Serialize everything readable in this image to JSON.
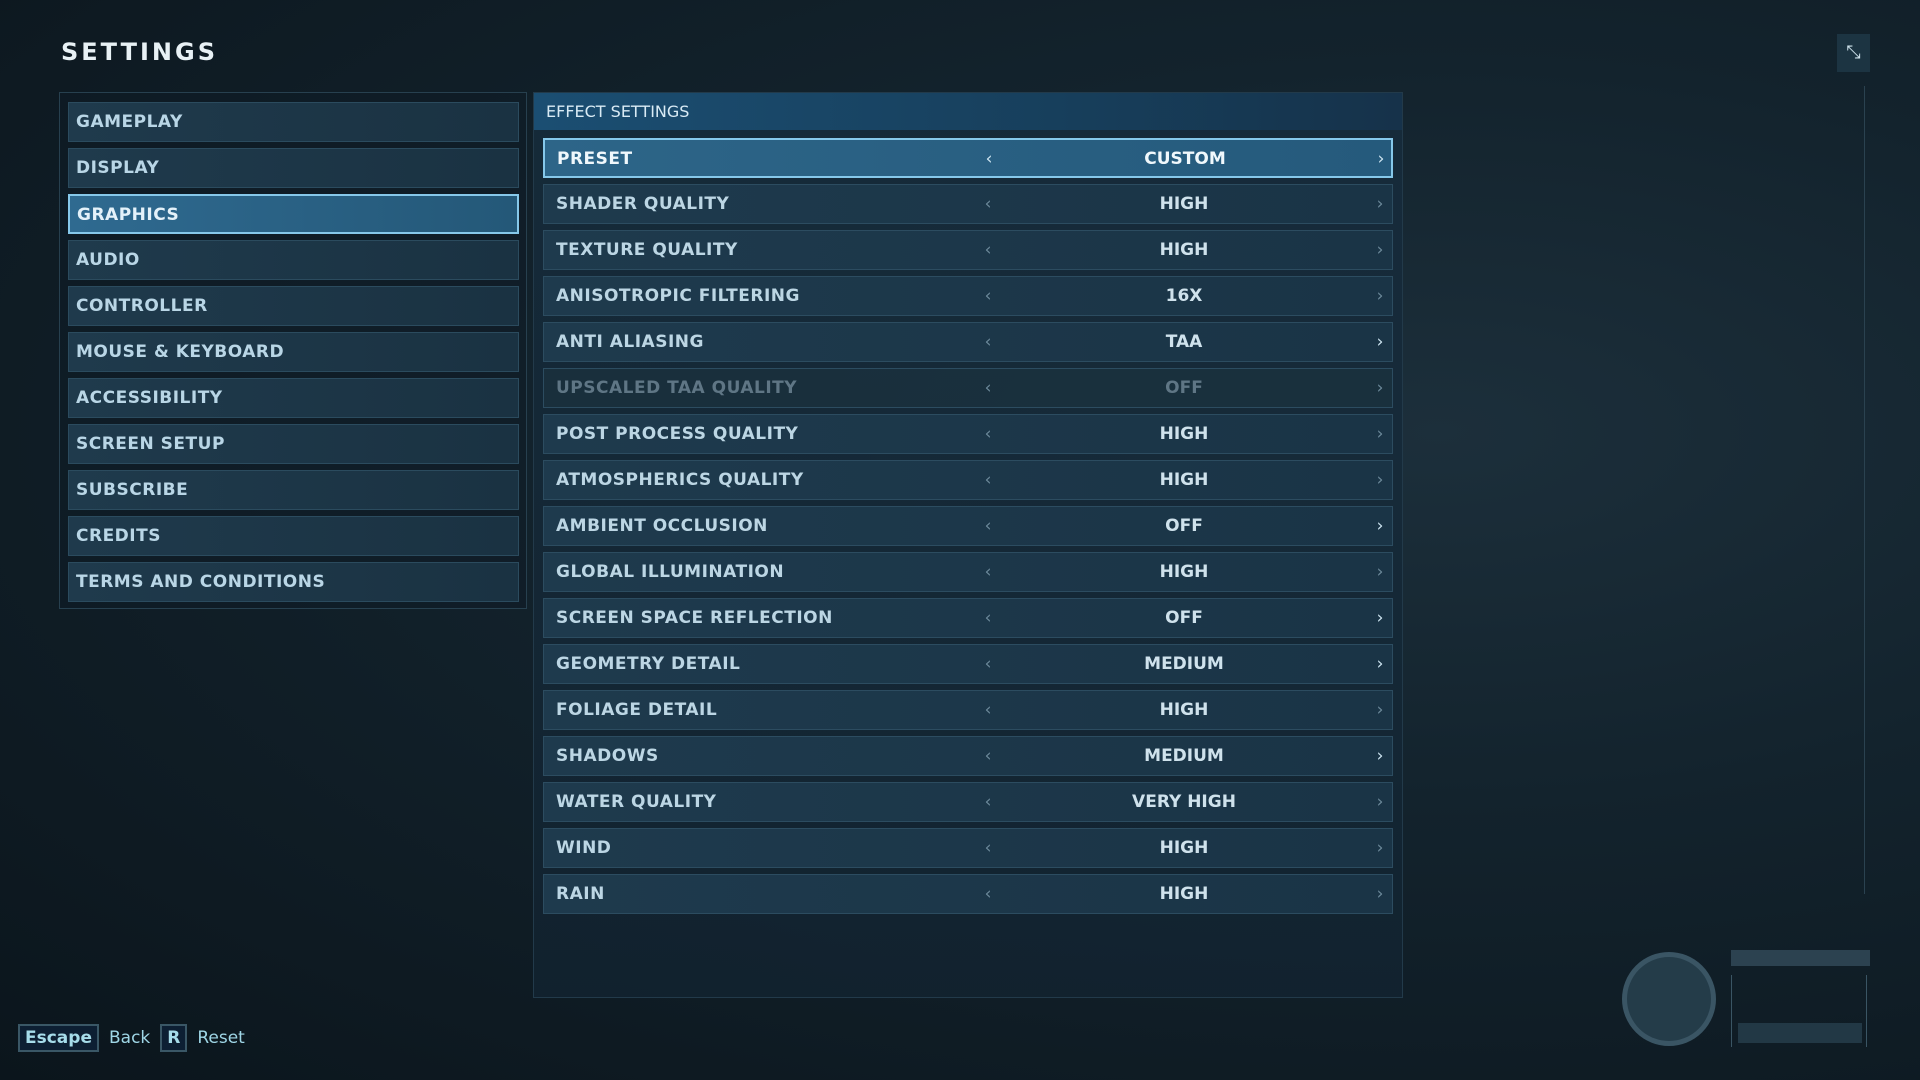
{
  "title": "SETTINGS",
  "sidebar": {
    "items": [
      {
        "label": "GAMEPLAY",
        "selected": false
      },
      {
        "label": "DISPLAY",
        "selected": false
      },
      {
        "label": "GRAPHICS",
        "selected": true
      },
      {
        "label": "AUDIO",
        "selected": false
      },
      {
        "label": "CONTROLLER",
        "selected": false
      },
      {
        "label": "MOUSE & KEYBOARD",
        "selected": false
      },
      {
        "label": "ACCESSIBILITY",
        "selected": false
      },
      {
        "label": "SCREEN SETUP",
        "selected": false
      },
      {
        "label": "SUBSCRIBE",
        "selected": false
      },
      {
        "label": "CREDITS",
        "selected": false
      },
      {
        "label": "TERMS AND CONDITIONS",
        "selected": false
      }
    ]
  },
  "main": {
    "header": "EFFECT SETTINGS",
    "rows": [
      {
        "label": "PRESET",
        "value": "CUSTOM",
        "selected": true,
        "disabled": false,
        "left_enabled": true,
        "right_enabled": true
      },
      {
        "label": "SHADER QUALITY",
        "value": "HIGH",
        "selected": false,
        "disabled": false,
        "left_enabled": false,
        "right_enabled": false
      },
      {
        "label": "TEXTURE QUALITY",
        "value": "HIGH",
        "selected": false,
        "disabled": false,
        "left_enabled": false,
        "right_enabled": false
      },
      {
        "label": "ANISOTROPIC FILTERING",
        "value": "16X",
        "selected": false,
        "disabled": false,
        "left_enabled": false,
        "right_enabled": false
      },
      {
        "label": "ANTI ALIASING",
        "value": "TAA",
        "selected": false,
        "disabled": false,
        "left_enabled": false,
        "right_enabled": true
      },
      {
        "label": "UPSCALED TAA QUALITY",
        "value": "OFF",
        "selected": false,
        "disabled": true,
        "left_enabled": false,
        "right_enabled": false
      },
      {
        "label": "POST PROCESS QUALITY",
        "value": "HIGH",
        "selected": false,
        "disabled": false,
        "left_enabled": false,
        "right_enabled": false
      },
      {
        "label": "ATMOSPHERICS QUALITY",
        "value": "HIGH",
        "selected": false,
        "disabled": false,
        "left_enabled": false,
        "right_enabled": false
      },
      {
        "label": "AMBIENT OCCLUSION",
        "value": "OFF",
        "selected": false,
        "disabled": false,
        "left_enabled": false,
        "right_enabled": true
      },
      {
        "label": "GLOBAL ILLUMINATION",
        "value": "HIGH",
        "selected": false,
        "disabled": false,
        "left_enabled": false,
        "right_enabled": false
      },
      {
        "label": "SCREEN SPACE REFLECTION",
        "value": "OFF",
        "selected": false,
        "disabled": false,
        "left_enabled": false,
        "right_enabled": true
      },
      {
        "label": "GEOMETRY DETAIL",
        "value": "MEDIUM",
        "selected": false,
        "disabled": false,
        "left_enabled": false,
        "right_enabled": true
      },
      {
        "label": "FOLIAGE DETAIL",
        "value": "HIGH",
        "selected": false,
        "disabled": false,
        "left_enabled": false,
        "right_enabled": false
      },
      {
        "label": "SHADOWS",
        "value": "MEDIUM",
        "selected": false,
        "disabled": false,
        "left_enabled": false,
        "right_enabled": true
      },
      {
        "label": "WATER QUALITY",
        "value": "VERY HIGH",
        "selected": false,
        "disabled": false,
        "left_enabled": false,
        "right_enabled": false
      },
      {
        "label": "WIND",
        "value": "HIGH",
        "selected": false,
        "disabled": false,
        "left_enabled": false,
        "right_enabled": false
      },
      {
        "label": "RAIN",
        "value": "HIGH",
        "selected": false,
        "disabled": false,
        "left_enabled": false,
        "right_enabled": false
      }
    ]
  },
  "footer": {
    "hints": [
      {
        "key": "Escape",
        "label": "Back"
      },
      {
        "key": "R",
        "label": "Reset"
      }
    ]
  },
  "icons": {
    "fullscreen": "collapse-arrows-icon",
    "logo": "jurassic-world-logo",
    "arrow_left": "chevron-left-icon",
    "arrow_right": "chevron-right-icon"
  },
  "colors": {
    "accent": "#86c8ea",
    "selected_bg": "#2d6588",
    "item_bg": "#1e3a4d",
    "background": "#13232d"
  }
}
